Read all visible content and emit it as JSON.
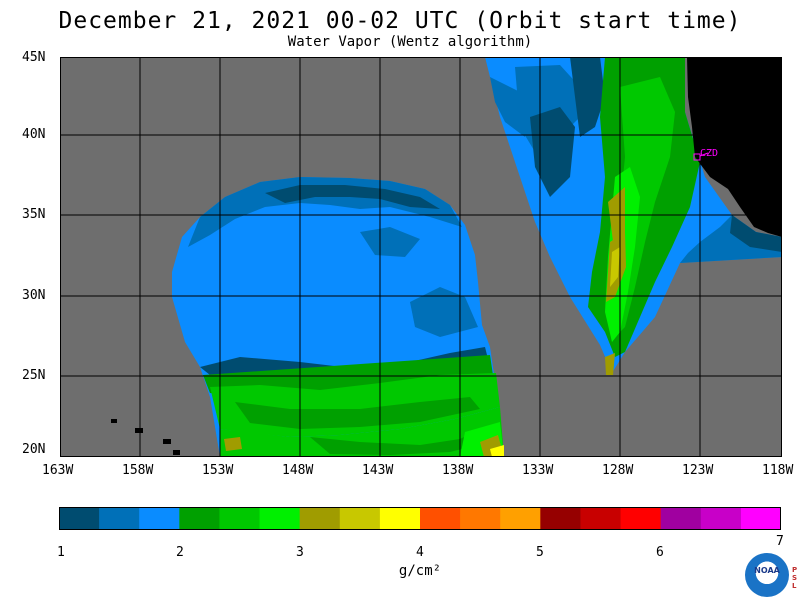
{
  "header": {
    "title": "December 21, 2021  00-02 UTC  (Orbit start time)",
    "subtitle": "Water Vapor (Wentz algorithm)"
  },
  "map": {
    "lat_labels": [
      "45N",
      "40N",
      "35N",
      "30N",
      "25N",
      "20N"
    ],
    "lon_labels": [
      "163W",
      "158W",
      "153W",
      "148W",
      "143W",
      "138W",
      "133W",
      "128W",
      "123W",
      "118W"
    ],
    "station_label": "CZD",
    "colors": {
      "nodata": "#6e6e6e",
      "land": "#000000",
      "grid": "#000000",
      "station": "#ff00ff"
    }
  },
  "colorbar": {
    "colors": [
      "#004c70",
      "#0070b8",
      "#0a8cff",
      "#00a000",
      "#00c800",
      "#00f000",
      "#a09c00",
      "#c8c800",
      "#ffff00",
      "#ff5000",
      "#ff7800",
      "#ffa000",
      "#960000",
      "#c80000",
      "#ff0000",
      "#a000a0",
      "#c800c8",
      "#ff00ff"
    ],
    "tick_labels": [
      "1",
      "2",
      "3",
      "4",
      "5",
      "6",
      "7"
    ],
    "units": "g/cm²"
  },
  "logo": {
    "text": "NOAA",
    "side_text": "PSL"
  }
}
